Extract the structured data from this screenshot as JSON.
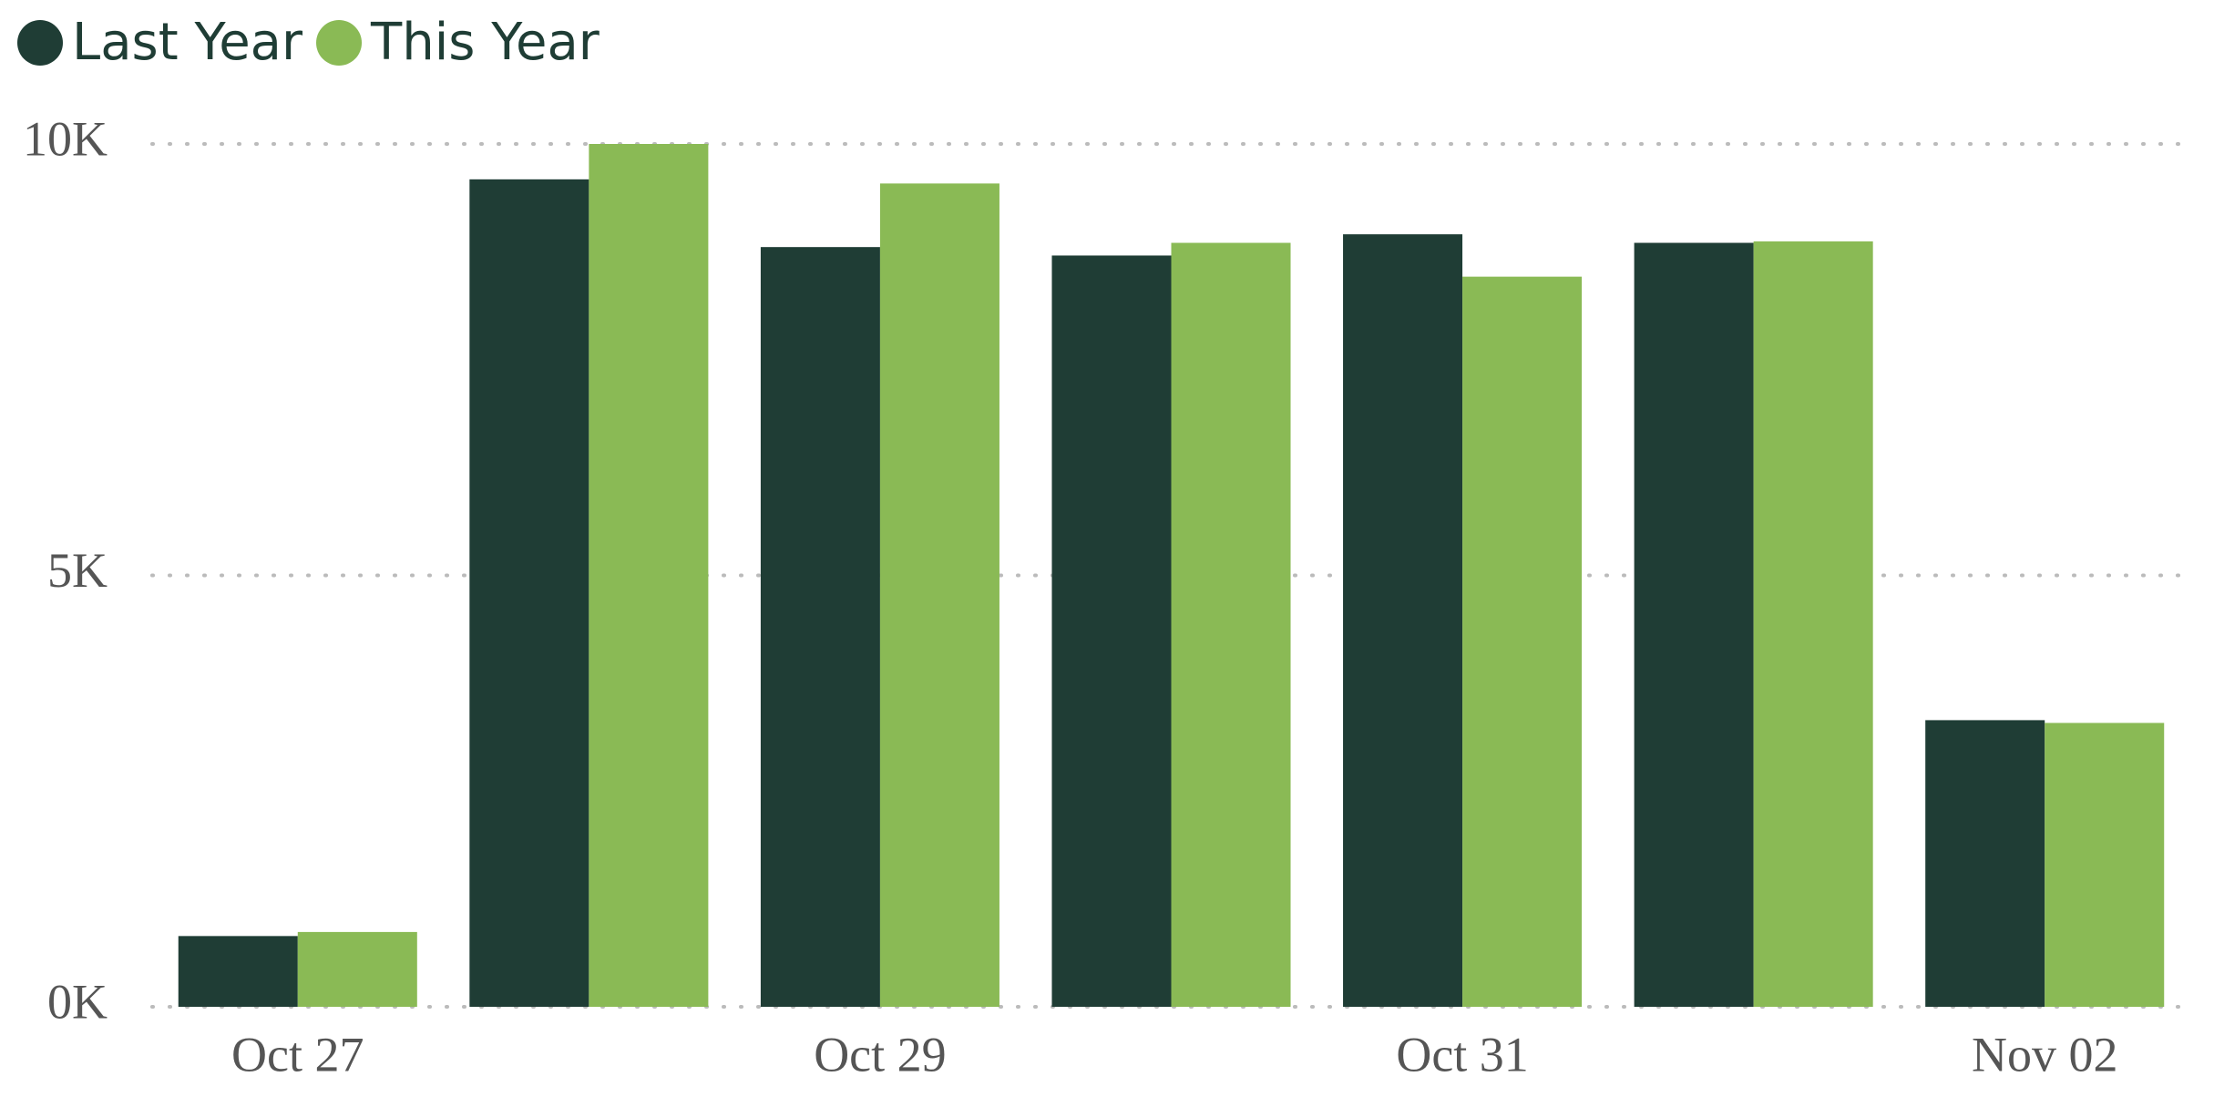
{
  "chart_data": {
    "type": "bar",
    "categories": [
      "Oct 27",
      null,
      "Oct 29",
      null,
      "Oct 31",
      null,
      "Nov 02"
    ],
    "series": [
      {
        "name": "Last Year",
        "color": "#1f3d35",
        "values": [
          820,
          9590,
          8805,
          8707,
          8953,
          8854,
          3322
        ]
      },
      {
        "name": "This Year",
        "color": "#8aba55",
        "values": [
          867,
          10000,
          9542,
          8854,
          8462,
          8871,
          3290
        ]
      }
    ],
    "ylim": [
      0,
      10000
    ],
    "yticks": [
      {
        "value": 0,
        "label": "0K"
      },
      {
        "value": 5000,
        "label": "5K"
      },
      {
        "value": 10000,
        "label": "10K"
      }
    ],
    "grid": true,
    "legend": "top-left"
  }
}
